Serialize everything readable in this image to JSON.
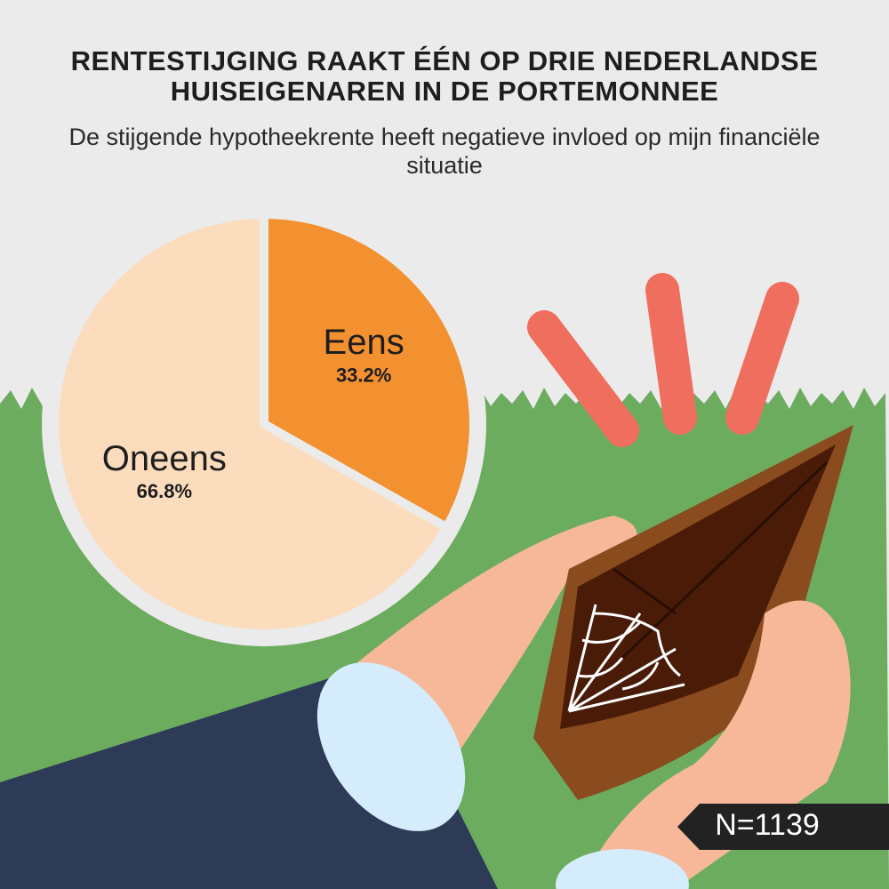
{
  "chart_data": {
    "type": "pie",
    "title": "RENTESTIJGING RAAKT ÉÉN OP DRIE NEDERLANDSE HUISEIGENAREN IN DE PORTEMONNEE",
    "subtitle": "De stijgende hypotheekrente heeft negatieve invloed op mijn financiële situatie",
    "categories": [
      "Eens",
      "Oneens"
    ],
    "values": [
      33.2,
      66.8
    ],
    "value_labels": [
      "33.2%",
      "66.8%"
    ],
    "colors": [
      "#f39130",
      "#fbdcbd"
    ],
    "annotation": "N=1139"
  }
}
